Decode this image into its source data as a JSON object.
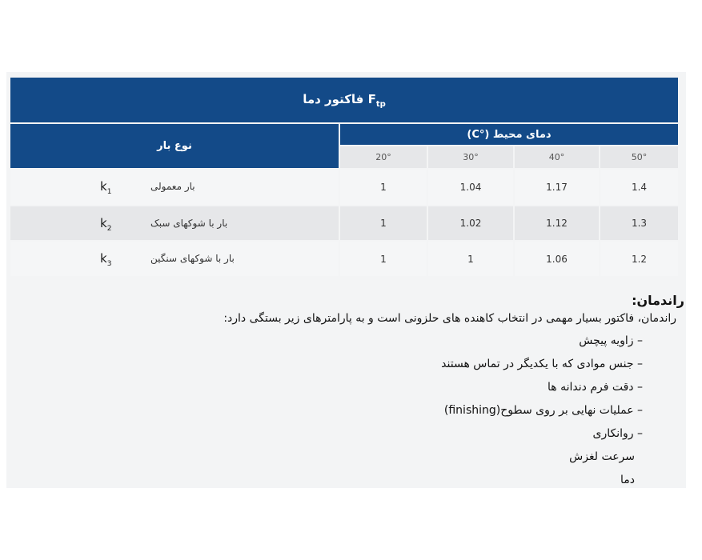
{
  "table": {
    "title": "فاکتور دما",
    "title_symbol": "F",
    "title_subscript": "tp",
    "load_type_header": "نوع بار",
    "ambient_temp_header": "دمای محیط (°C)",
    "temperatures": [
      "20°",
      "30°",
      "40°",
      "50°"
    ],
    "rows": [
      {
        "symbol": "k",
        "sub": "1",
        "name": "بار معمولی",
        "values": [
          "1",
          "1.04",
          "1.17",
          "1.4"
        ]
      },
      {
        "symbol": "k",
        "sub": "2",
        "name": "بار با شوکهای سبک",
        "values": [
          "1",
          "1.02",
          "1.12",
          "1.3"
        ]
      },
      {
        "symbol": "k",
        "sub": "3",
        "name": "بار با شوکهای سنگین",
        "values": [
          "1",
          "1",
          "1.06",
          "1.2"
        ]
      }
    ]
  },
  "section": {
    "heading": "راندمان:",
    "intro": "راندمان، فاکتور بسیار مهمی در انتخاب کاهنده های حلزونی است و به پارامترهای زیر بستگی دارد:",
    "items": [
      "– زاویه پیچش",
      "– جنس موادی که با یکدیگر در تماس هستند",
      "– دقت فرم دندانه ها",
      "– عملیات نهایی بر روی سطوح(finishing)",
      "– روانکاری",
      "سرعت لغزش",
      "دما"
    ]
  },
  "colors": {
    "header_blue": "#134a88",
    "row_light": "#f5f6f7",
    "row_dark": "#e6e7e9"
  }
}
